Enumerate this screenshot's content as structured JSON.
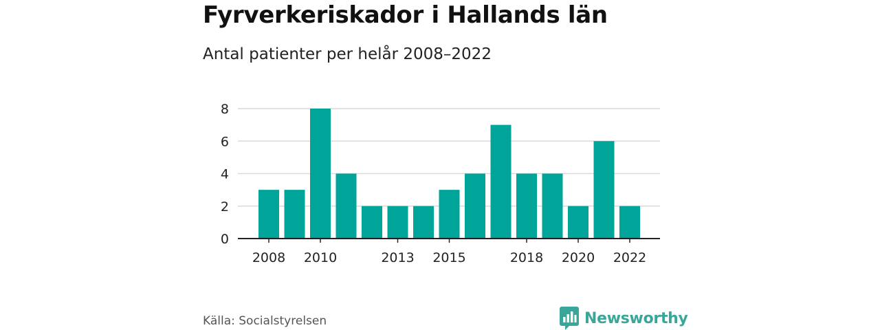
{
  "header": {
    "title": "Fyrverkeriskador i Hallands län",
    "subtitle": "Antal patienter per helår 2008–2022"
  },
  "footer": {
    "source": "Källa: Socialstyrelsen",
    "brand_name": "Newsworthy",
    "brand_icon": "bar-chart-speech-bubble-icon"
  },
  "colors": {
    "bar": "#00a499",
    "grid": "#d9d9d9",
    "axis": "#222222",
    "brand": "#3aa699",
    "text": "#111111"
  },
  "chart_data": {
    "type": "bar",
    "categories": [
      "2008",
      "2009",
      "2010",
      "2011",
      "2012",
      "2013",
      "2014",
      "2015",
      "2016",
      "2017",
      "2018",
      "2019",
      "2020",
      "2021",
      "2022"
    ],
    "values": [
      3,
      3,
      8,
      4,
      2,
      2,
      2,
      3,
      4,
      7,
      4,
      4,
      2,
      6,
      2
    ],
    "x_tick_labels": [
      "2008",
      "2010",
      "2013",
      "2015",
      "2018",
      "2020",
      "2022"
    ],
    "y_ticks": [
      0,
      2,
      4,
      6,
      8
    ],
    "ylim": [
      0,
      8
    ],
    "title": "Fyrverkeriskador i Hallands län",
    "subtitle": "Antal patienter per helår 2008–2022",
    "xlabel": "",
    "ylabel": "",
    "grid": true,
    "legend": "none"
  }
}
